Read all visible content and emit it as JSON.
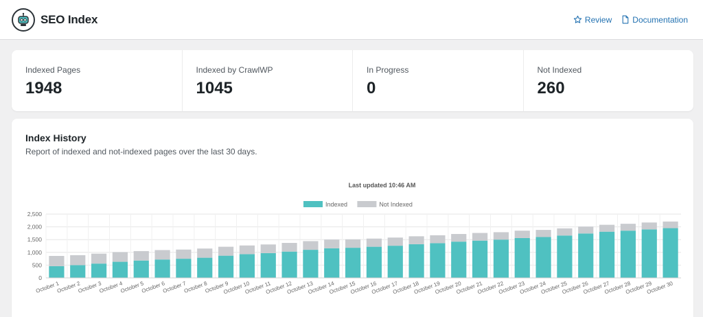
{
  "header": {
    "app_title": "SEO Index",
    "links": [
      {
        "label": "Review",
        "icon": "star-icon"
      },
      {
        "label": "Documentation",
        "icon": "document-icon"
      }
    ],
    "accent_color": "#2271b1"
  },
  "stats": [
    {
      "label": "Indexed Pages",
      "value": "1948"
    },
    {
      "label": "Indexed by CrawlWP",
      "value": "1045"
    },
    {
      "label": "In Progress",
      "value": "0"
    },
    {
      "label": "Not Indexed",
      "value": "260"
    }
  ],
  "history": {
    "title": "Index History",
    "subtitle": "Report of indexed and not-indexed pages over the last 30 days."
  },
  "chart_data": {
    "type": "bar",
    "stacked": true,
    "title": "Last updated 10:46 AM",
    "xlabel": "",
    "ylabel": "",
    "ylim": [
      0,
      2500
    ],
    "yticks": [
      "0",
      "500",
      "1,000",
      "1,500",
      "2,000",
      "2,500"
    ],
    "grid": true,
    "legend_position": "top-center",
    "categories": [
      "October 1",
      "October 2",
      "October 3",
      "October 4",
      "October 5",
      "October 6",
      "October 7",
      "October 8",
      "October 9",
      "October 10",
      "October 11",
      "October 12",
      "October 13",
      "October 14",
      "October 15",
      "October 16",
      "October 17",
      "October 18",
      "October 19",
      "October 20",
      "October 21",
      "October 22",
      "October 23",
      "October 24",
      "October 25",
      "October 26",
      "October 27",
      "October 28",
      "October 29",
      "October 30"
    ],
    "series": [
      {
        "name": "Indexed",
        "color": "#4fc1c1",
        "values": [
          460,
          500,
          560,
          630,
          680,
          720,
          750,
          790,
          870,
          930,
          970,
          1030,
          1100,
          1160,
          1180,
          1220,
          1260,
          1320,
          1360,
          1420,
          1460,
          1500,
          1560,
          1600,
          1660,
          1740,
          1810,
          1850,
          1900,
          1948
        ]
      },
      {
        "name": "Not Indexed",
        "color": "#c9cbcf",
        "values": [
          400,
          390,
          390,
          380,
          370,
          370,
          360,
          360,
          350,
          340,
          340,
          340,
          340,
          340,
          330,
          320,
          320,
          310,
          310,
          300,
          300,
          290,
          290,
          280,
          280,
          270,
          270,
          270,
          270,
          260
        ]
      }
    ]
  }
}
